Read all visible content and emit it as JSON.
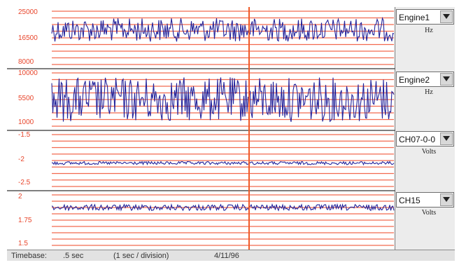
{
  "channels": [
    {
      "name": "Engine1",
      "unit": "Hz",
      "y_top": "25000",
      "y_mid": "16500",
      "y_bottom": "8000",
      "trace": {
        "center": 0.35,
        "amplitude": 0.22
      }
    },
    {
      "name": "Engine2",
      "unit": "Hz",
      "y_top": "10000",
      "y_mid": "5500",
      "y_bottom": "1000",
      "trace": {
        "center": 0.5,
        "amplitude": 0.42
      }
    },
    {
      "name": "CH07-0-0",
      "unit": "Volts",
      "y_top": "-1.5",
      "y_mid": "-2",
      "y_bottom": "-2.5",
      "trace": {
        "center": 0.55,
        "amplitude": 0.03
      }
    },
    {
      "name": "CH15",
      "unit": "Volts",
      "y_top": "2",
      "y_mid": "1.75",
      "y_bottom": "1.5",
      "trace": {
        "center": 0.25,
        "amplitude": 0.06
      }
    }
  ],
  "status": {
    "label": "Timebase:",
    "timebase": ".5 sec",
    "division": "(1 sec / division)",
    "date": "4/11/96"
  },
  "colors": {
    "grid": "#f26a4f",
    "cursor": "#f05a28",
    "trace": "#23239b",
    "label": "#e8452b"
  }
}
